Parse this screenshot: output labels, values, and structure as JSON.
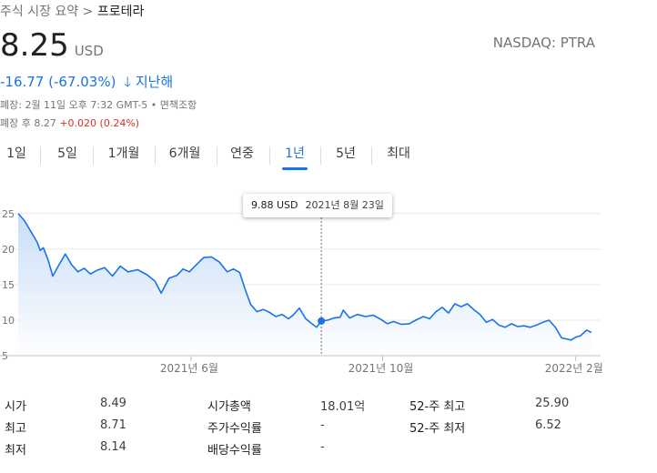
{
  "breadcrumb": {
    "prefix": "주식 시장 요약 > ",
    "name": "프로테라"
  },
  "quote": {
    "price": "8.25",
    "currency": "USD",
    "exchange": "NASDAQ: PTRA",
    "change": "-16.77 (-67.03%)",
    "change_arrow": "🡓",
    "change_period": "지난해"
  },
  "meta": {
    "closed": "폐장: 2월 11일 오후 7:32 GMT-5 • 면책조항",
    "after_label": "폐장 후 8.27 ",
    "after_change": "+0.020 (0.24%)"
  },
  "tabs": [
    {
      "label": "1일",
      "active": false
    },
    {
      "label": "5일",
      "active": false
    },
    {
      "label": "1개월",
      "active": false
    },
    {
      "label": "6개월",
      "active": false
    },
    {
      "label": "연중",
      "active": false
    },
    {
      "label": "1년",
      "active": true
    },
    {
      "label": "5년",
      "active": false
    },
    {
      "label": "최대",
      "active": false
    }
  ],
  "tooltip": {
    "price": "9.88 USD",
    "date": "2021년 8월 23일"
  },
  "colors": {
    "line": "#1a73e8",
    "fill_top": "#c6dcf7",
    "grid": "#e8eaed"
  },
  "chart_data": {
    "type": "area",
    "y_ticks": [
      "25",
      "20",
      "15",
      "10",
      "5"
    ],
    "x_ticks": [
      {
        "label": "2021년 6월",
        "date": "2021-06-01"
      },
      {
        "label": "2021년 10월",
        "date": "2021-10-01"
      },
      {
        "label": "2022년 2월",
        "date": "2022-02-01"
      }
    ],
    "ylim": [
      5,
      26
    ],
    "x_range": [
      "2021-02-11",
      "2022-02-11"
    ],
    "hover": {
      "date": "2021-08-23",
      "value": 9.88
    },
    "series": [
      {
        "points": [
          [
            "2021-02-11",
            25.0
          ],
          [
            "2021-02-15",
            24.0
          ],
          [
            "2021-02-19",
            22.5
          ],
          [
            "2021-02-23",
            21.0
          ],
          [
            "2021-02-25",
            19.8
          ],
          [
            "2021-02-27",
            20.2
          ],
          [
            "2021-03-02",
            18.5
          ],
          [
            "2021-03-05",
            16.2
          ],
          [
            "2021-03-09",
            17.8
          ],
          [
            "2021-03-13",
            19.3
          ],
          [
            "2021-03-17",
            17.8
          ],
          [
            "2021-03-21",
            16.8
          ],
          [
            "2021-03-25",
            17.3
          ],
          [
            "2021-03-29",
            16.5
          ],
          [
            "2021-04-02",
            17.0
          ],
          [
            "2021-04-07",
            17.4
          ],
          [
            "2021-04-12",
            16.2
          ],
          [
            "2021-04-17",
            17.6
          ],
          [
            "2021-04-22",
            16.8
          ],
          [
            "2021-04-28",
            17.1
          ],
          [
            "2021-05-04",
            16.4
          ],
          [
            "2021-05-09",
            15.5
          ],
          [
            "2021-05-13",
            13.8
          ],
          [
            "2021-05-18",
            15.9
          ],
          [
            "2021-05-23",
            16.3
          ],
          [
            "2021-05-27",
            17.2
          ],
          [
            "2021-05-31",
            16.8
          ],
          [
            "2021-06-04",
            17.7
          ],
          [
            "2021-06-09",
            18.8
          ],
          [
            "2021-06-14",
            18.9
          ],
          [
            "2021-06-19",
            18.2
          ],
          [
            "2021-06-24",
            16.8
          ],
          [
            "2021-06-28",
            17.2
          ],
          [
            "2021-07-02",
            16.7
          ],
          [
            "2021-07-06",
            14.0
          ],
          [
            "2021-07-09",
            12.2
          ],
          [
            "2021-07-13",
            11.2
          ],
          [
            "2021-07-17",
            11.5
          ],
          [
            "2021-07-21",
            11.1
          ],
          [
            "2021-07-25",
            10.5
          ],
          [
            "2021-07-29",
            10.8
          ],
          [
            "2021-08-02",
            10.2
          ],
          [
            "2021-08-05",
            10.7
          ],
          [
            "2021-08-09",
            11.7
          ],
          [
            "2021-08-13",
            10.2
          ],
          [
            "2021-08-17",
            9.5
          ],
          [
            "2021-08-20",
            9.0
          ],
          [
            "2021-08-23",
            9.88
          ],
          [
            "2021-08-27",
            10.0
          ],
          [
            "2021-08-31",
            10.3
          ],
          [
            "2021-09-04",
            10.4
          ],
          [
            "2021-09-06",
            11.4
          ],
          [
            "2021-09-10",
            10.3
          ],
          [
            "2021-09-15",
            10.8
          ],
          [
            "2021-09-20",
            10.5
          ],
          [
            "2021-09-25",
            10.7
          ],
          [
            "2021-09-30",
            10.1
          ],
          [
            "2021-10-04",
            9.5
          ],
          [
            "2021-10-08",
            9.8
          ],
          [
            "2021-10-13",
            9.4
          ],
          [
            "2021-10-18",
            9.5
          ],
          [
            "2021-10-22",
            10.0
          ],
          [
            "2021-10-27",
            10.5
          ],
          [
            "2021-10-31",
            10.2
          ],
          [
            "2021-11-04",
            11.2
          ],
          [
            "2021-11-08",
            11.8
          ],
          [
            "2021-11-12",
            11.0
          ],
          [
            "2021-11-16",
            12.3
          ],
          [
            "2021-11-20",
            11.9
          ],
          [
            "2021-11-24",
            12.3
          ],
          [
            "2021-11-28",
            11.5
          ],
          [
            "2021-12-02",
            10.8
          ],
          [
            "2021-12-06",
            9.7
          ],
          [
            "2021-12-10",
            10.1
          ],
          [
            "2021-12-14",
            9.3
          ],
          [
            "2021-12-18",
            9.0
          ],
          [
            "2021-12-22",
            9.5
          ],
          [
            "2021-12-26",
            9.1
          ],
          [
            "2021-12-30",
            9.2
          ],
          [
            "2022-01-03",
            9.0
          ],
          [
            "2022-01-07",
            9.3
          ],
          [
            "2022-01-11",
            9.7
          ],
          [
            "2022-01-15",
            10.0
          ],
          [
            "2022-01-19",
            9.0
          ],
          [
            "2022-01-23",
            7.5
          ],
          [
            "2022-01-27",
            7.3
          ],
          [
            "2022-01-29",
            7.2
          ],
          [
            "2022-02-01",
            7.6
          ],
          [
            "2022-02-04",
            7.8
          ],
          [
            "2022-02-08",
            8.6
          ],
          [
            "2022-02-11",
            8.25
          ]
        ]
      }
    ]
  },
  "stats": [
    {
      "label": "시가",
      "value": "8.49"
    },
    {
      "label": "최고",
      "value": "8.71"
    },
    {
      "label": "최저",
      "value": "8.14"
    },
    {
      "label": "시가총액",
      "value": "18.01억"
    },
    {
      "label": "주가수익률",
      "value": "-"
    },
    {
      "label": "배당수익률",
      "value": "-"
    },
    {
      "label": "52-주 최고",
      "value": "25.90"
    },
    {
      "label": "52-주 최저",
      "value": "6.52"
    }
  ]
}
